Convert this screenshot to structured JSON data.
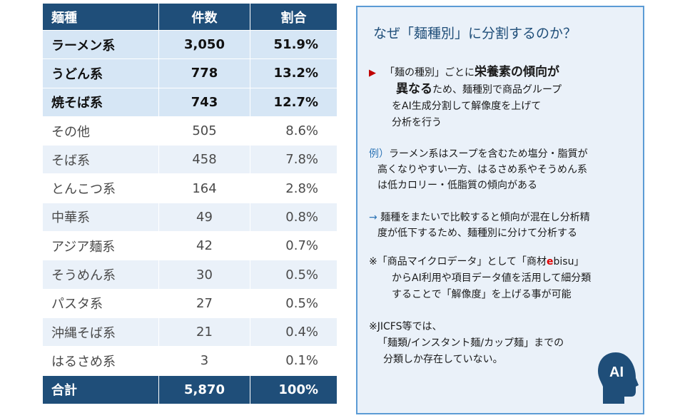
{
  "table": {
    "headers": [
      "麺種",
      "件数",
      "割合"
    ],
    "rows": [
      {
        "name": "ラーメン系",
        "count": "3,050",
        "pct": "51.9%"
      },
      {
        "name": "うどん系",
        "count": "778",
        "pct": "13.2%"
      },
      {
        "name": "焼そば系",
        "count": "743",
        "pct": "12.7%"
      },
      {
        "name": "その他",
        "count": "505",
        "pct": "8.6%"
      },
      {
        "name": "そば系",
        "count": "458",
        "pct": "7.8%"
      },
      {
        "name": "とんこつ系",
        "count": "164",
        "pct": "2.8%"
      },
      {
        "name": "中華系",
        "count": "49",
        "pct": "0.8%"
      },
      {
        "name": "アジア麺系",
        "count": "42",
        "pct": "0.7%"
      },
      {
        "name": "そうめん系",
        "count": "30",
        "pct": "0.5%"
      },
      {
        "name": "パスタ系",
        "count": "27",
        "pct": "0.5%"
      },
      {
        "name": "沖縄そば系",
        "count": "21",
        "pct": "0.4%"
      },
      {
        "name": "はるさめ系",
        "count": "3",
        "pct": "0.1%"
      }
    ],
    "total": {
      "name": "合計",
      "count": "5,870",
      "pct": "100%"
    }
  },
  "panel": {
    "title": "なぜ「麺種別」に分割するのか？",
    "point1": {
      "bullet": "▶",
      "l1a": "「麺の種別」ごとに",
      "l1b": "栄養素の傾向が",
      "l2a": "異なる",
      "l2b": "ため、麺種別で商品グループ",
      "l3": "をAI生成分割して解像度を上げて",
      "l4": "分析を行う"
    },
    "example": {
      "prefix": "例）",
      "l1": "ラーメン系はスープを含むため塩分・脂質が",
      "l2": "高くなりやすい一方、はるさめ系やそうめん系",
      "l3": "は低カロリー・低脂質の傾向がある"
    },
    "arrow": {
      "prefix": "→",
      "l1": "麺種をまたいで比較すると傾向が混在し分析精",
      "l2": "度が低下するため、麺種別に分けて分析する"
    },
    "note": {
      "l1a": "※「商品マイクロデータ」として「商材",
      "l1b": "e",
      "l1c": "bisu」",
      "l2": "からAI利用や項目データ値を活用して細分類",
      "l3": "することで「解像度」を上げる事が可能"
    },
    "jicfs": {
      "l1": "※JICFS等では、",
      "l2": "「麺類/インスタント麺/カップ麺」までの",
      "l3": "分類しか存在していない。"
    },
    "ai_label": "AI"
  },
  "colors": {
    "header_bg": "#1f4e79",
    "highlight_row_bg": "#d6e6f5",
    "stripe_bg": "#eaf1f9",
    "panel_bg": "#eaf1f9",
    "panel_border": "#5b9bd5",
    "accent_red": "#c00000"
  }
}
